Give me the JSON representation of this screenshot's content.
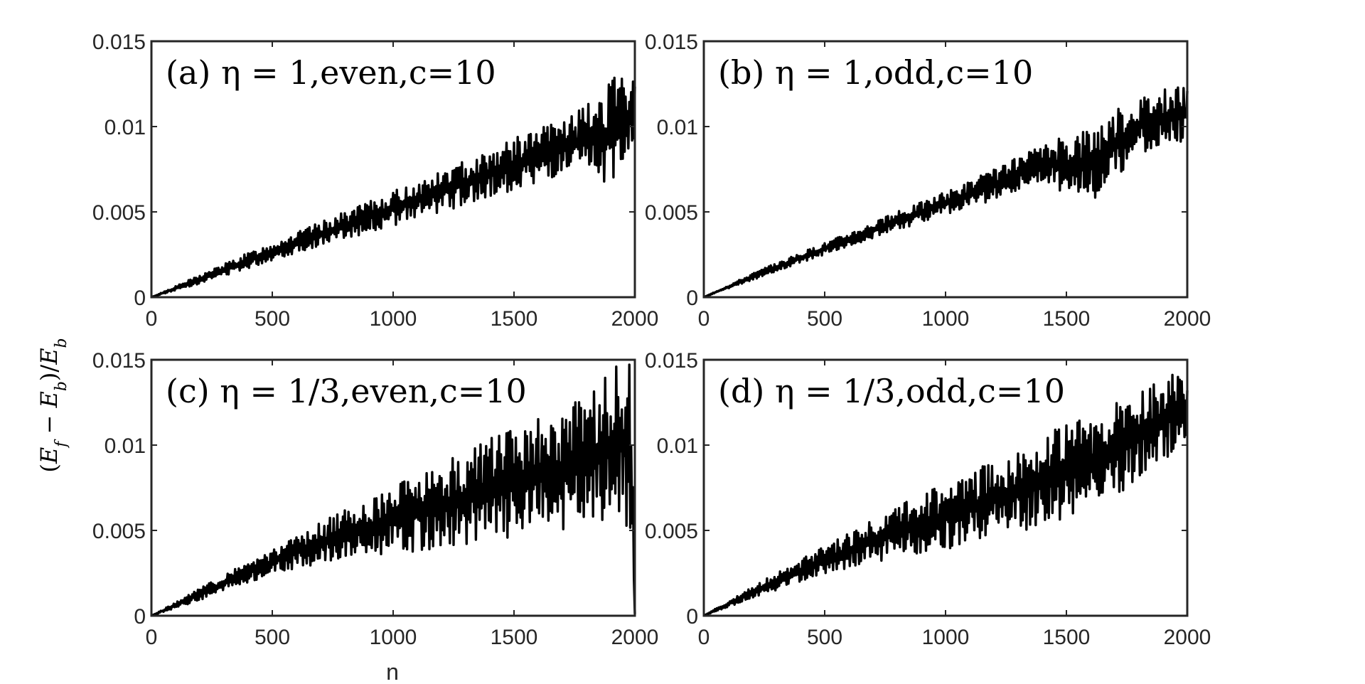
{
  "figure": {
    "ylabel": "(E_f − E_b)/E_b",
    "xlabel": "n"
  },
  "chart_data": [
    {
      "type": "line",
      "title": "(a) η = 1,even,c=10",
      "xlabel": "",
      "ylabel": "",
      "xlim": [
        0,
        2000
      ],
      "ylim": [
        0,
        0.015
      ],
      "xticks": [
        "0",
        "500",
        "1000",
        "1500",
        "2000"
      ],
      "yticks": [
        "0",
        "0.005",
        "0.01",
        "0.015"
      ],
      "grid": false,
      "color": "#000000",
      "series": [
        {
          "upper_envelope": {
            "x": [
              0,
              200,
              400,
              600,
              800,
              1000,
              1200,
              1400,
              1600,
              1800,
              1900,
              2000
            ],
            "y": [
              0,
              0.0013,
              0.0026,
              0.0038,
              0.005,
              0.0062,
              0.0074,
              0.0087,
              0.0099,
              0.0112,
              0.0129,
              0.0128
            ]
          },
          "lower_envelope": {
            "x": [
              0,
              200,
              400,
              600,
              800,
              1000,
              1200,
              1400,
              1600,
              1800,
              1900,
              2000
            ],
            "y": [
              0,
              0.0008,
              0.0017,
              0.0026,
              0.0034,
              0.0042,
              0.005,
              0.0058,
              0.0067,
              0.0072,
              0.0063,
              0.0092
            ]
          }
        }
      ]
    },
    {
      "type": "line",
      "title": "(b) η = 1,odd,c=10",
      "xlabel": "",
      "ylabel": "",
      "xlim": [
        0,
        2000
      ],
      "ylim": [
        0,
        0.015
      ],
      "xticks": [
        "0",
        "500",
        "1000",
        "1500",
        "2000"
      ],
      "yticks": [
        "0",
        "0.005",
        "0.01",
        "0.015"
      ],
      "grid": false,
      "color": "#000000",
      "series": [
        {
          "upper_envelope": {
            "x": [
              0,
              200,
              400,
              600,
              800,
              1000,
              1200,
              1400,
              1600,
              1800,
              2000
            ],
            "y": [
              0,
              0.0014,
              0.0026,
              0.0038,
              0.005,
              0.0062,
              0.0075,
              0.0089,
              0.0102,
              0.0118,
              0.0125
            ]
          },
          "lower_envelope": {
            "x": [
              0,
              200,
              400,
              600,
              800,
              1000,
              1200,
              1400,
              1600,
              1800,
              2000
            ],
            "y": [
              0,
              0.001,
              0.002,
              0.003,
              0.0039,
              0.0048,
              0.0057,
              0.0067,
              0.0054,
              0.0084,
              0.0092
            ]
          }
        }
      ]
    },
    {
      "type": "line",
      "title": "(c) η = 1/3,even,c=10",
      "xlabel": "",
      "ylabel": "",
      "xlim": [
        0,
        2000
      ],
      "ylim": [
        0,
        0.015
      ],
      "xticks": [
        "0",
        "500",
        "1000",
        "1500",
        "2000"
      ],
      "yticks": [
        "0",
        "0.005",
        "0.01",
        "0.015"
      ],
      "grid": false,
      "color": "#000000",
      "series": [
        {
          "upper_envelope": {
            "x": [
              0,
              200,
              400,
              600,
              800,
              1000,
              1200,
              1400,
              1600,
              1800,
              1950,
              1990,
              2000
            ],
            "y": [
              0,
              0.0016,
              0.0032,
              0.0047,
              0.0062,
              0.0076,
              0.009,
              0.0104,
              0.0116,
              0.0128,
              0.0152,
              0.0146,
              0.0001
            ]
          },
          "lower_envelope": {
            "x": [
              0,
              200,
              400,
              600,
              800,
              1000,
              1200,
              1400,
              1600,
              1800,
              1950,
              2000
            ],
            "y": [
              0,
              0.0009,
              0.0019,
              0.0028,
              0.0033,
              0.0036,
              0.004,
              0.0044,
              0.0048,
              0.0053,
              0.0059,
              0.0001
            ]
          }
        }
      ]
    },
    {
      "type": "line",
      "title": "(d) η = 1/3,odd,c=10",
      "xlabel": "",
      "ylabel": "",
      "xlim": [
        0,
        2000
      ],
      "ylim": [
        0,
        0.015
      ],
      "xticks": [
        "0",
        "500",
        "1000",
        "1500",
        "2000"
      ],
      "yticks": [
        "0",
        "0.005",
        "0.01",
        "0.015"
      ],
      "grid": false,
      "color": "#000000",
      "series": [
        {
          "upper_envelope": {
            "x": [
              0,
              200,
              400,
              600,
              800,
              1000,
              1200,
              1400,
              1600,
              1800,
              1950,
              2000
            ],
            "y": [
              0,
              0.0017,
              0.0033,
              0.0049,
              0.0064,
              0.0078,
              0.0091,
              0.0106,
              0.0118,
              0.0131,
              0.0145,
              0.0137
            ]
          },
          "lower_envelope": {
            "x": [
              0,
              200,
              400,
              600,
              800,
              1000,
              1200,
              1400,
              1600,
              1800,
              2000
            ],
            "y": [
              0,
              0.001,
              0.002,
              0.0028,
              0.0034,
              0.0039,
              0.0046,
              0.0052,
              0.0064,
              0.0078,
              0.0098
            ]
          }
        }
      ]
    }
  ]
}
